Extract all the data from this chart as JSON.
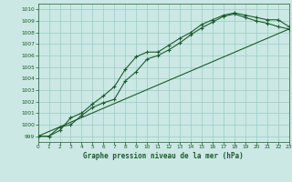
{
  "background_color": "#cce8e4",
  "grid_color": "#99ccc6",
  "line_color": "#1a5c2a",
  "marker_color": "#1a5c2a",
  "title": "Graphe pression niveau de la mer (hPa)",
  "xlim": [
    0,
    23
  ],
  "ylim": [
    998.5,
    1010.5
  ],
  "yticks": [
    999,
    1000,
    1001,
    1002,
    1003,
    1004,
    1005,
    1006,
    1007,
    1008,
    1009,
    1010
  ],
  "xticks": [
    0,
    1,
    2,
    3,
    4,
    5,
    6,
    7,
    8,
    9,
    10,
    11,
    12,
    13,
    14,
    15,
    16,
    17,
    18,
    19,
    20,
    21,
    22,
    23
  ],
  "series1_x": [
    0,
    1,
    2,
    3,
    4,
    5,
    6,
    7,
    8,
    9,
    10,
    11,
    12,
    13,
    14,
    15,
    16,
    17,
    18,
    19,
    20,
    21,
    22,
    23
  ],
  "series1_y": [
    999.0,
    999.0,
    999.5,
    1000.6,
    1001.0,
    1001.8,
    1002.5,
    1003.3,
    1004.8,
    1005.9,
    1006.3,
    1006.3,
    1006.9,
    1007.5,
    1008.0,
    1008.7,
    1009.1,
    1009.5,
    1009.7,
    1009.5,
    1009.3,
    1009.1,
    1009.1,
    1008.5
  ],
  "series2_x": [
    0,
    1,
    2,
    3,
    4,
    5,
    6,
    7,
    8,
    9,
    10,
    11,
    12,
    13,
    14,
    15,
    16,
    17,
    18,
    19,
    20,
    21,
    22,
    23
  ],
  "series2_y": [
    999.0,
    999.0,
    999.8,
    1000.0,
    1000.8,
    1001.5,
    1001.9,
    1002.2,
    1003.8,
    1004.6,
    1005.7,
    1006.0,
    1006.5,
    1007.1,
    1007.8,
    1008.4,
    1008.9,
    1009.4,
    1009.6,
    1009.3,
    1009.0,
    1008.8,
    1008.5,
    1008.3
  ],
  "series3_x": [
    0,
    23
  ],
  "series3_y": [
    999.0,
    1008.3
  ]
}
